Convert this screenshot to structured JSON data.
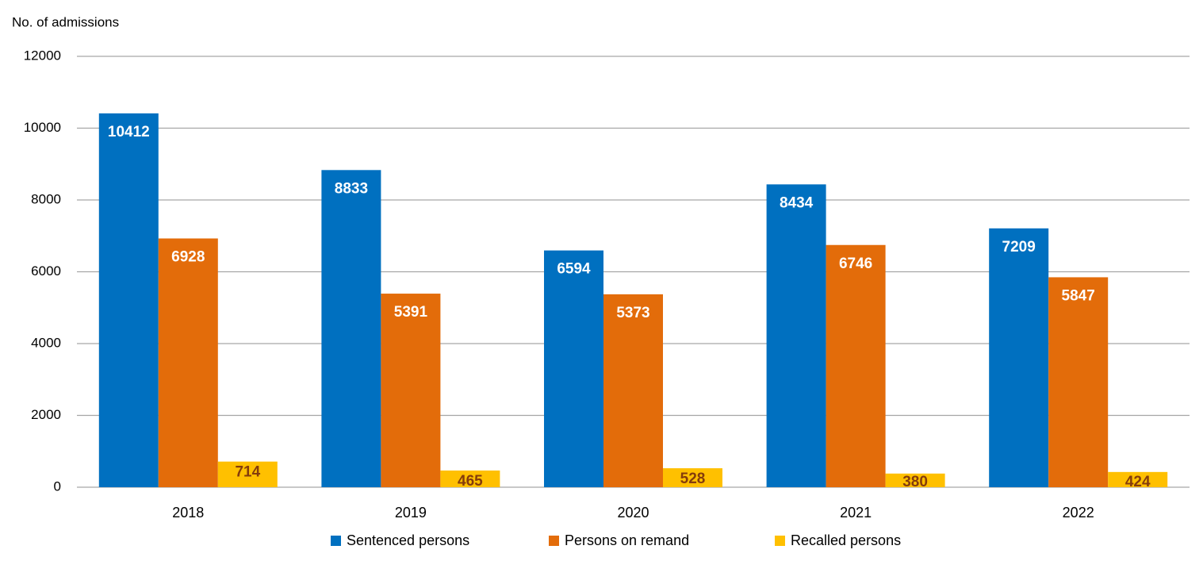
{
  "chart_data": {
    "type": "bar",
    "y_axis_label": "No. of admissions",
    "categories": [
      "2018",
      "2019",
      "2020",
      "2021",
      "2022"
    ],
    "series": [
      {
        "name": "Sentenced persons",
        "color": "#0070c0",
        "label_color": "#ffffff",
        "values": [
          10412,
          8833,
          6594,
          8434,
          7209
        ]
      },
      {
        "name": "Persons on remand",
        "color": "#e36c0a",
        "label_color": "#ffffff",
        "values": [
          6928,
          5391,
          5373,
          6746,
          5847
        ]
      },
      {
        "name": "Recalled persons",
        "color": "#ffc000",
        "label_color": "#843c0c",
        "values": [
          714,
          465,
          528,
          380,
          424
        ]
      }
    ],
    "ylim": [
      0,
      12000
    ],
    "yticks": [
      0,
      2000,
      4000,
      6000,
      8000,
      10000,
      12000
    ],
    "grid": true,
    "legend": "bottom"
  }
}
